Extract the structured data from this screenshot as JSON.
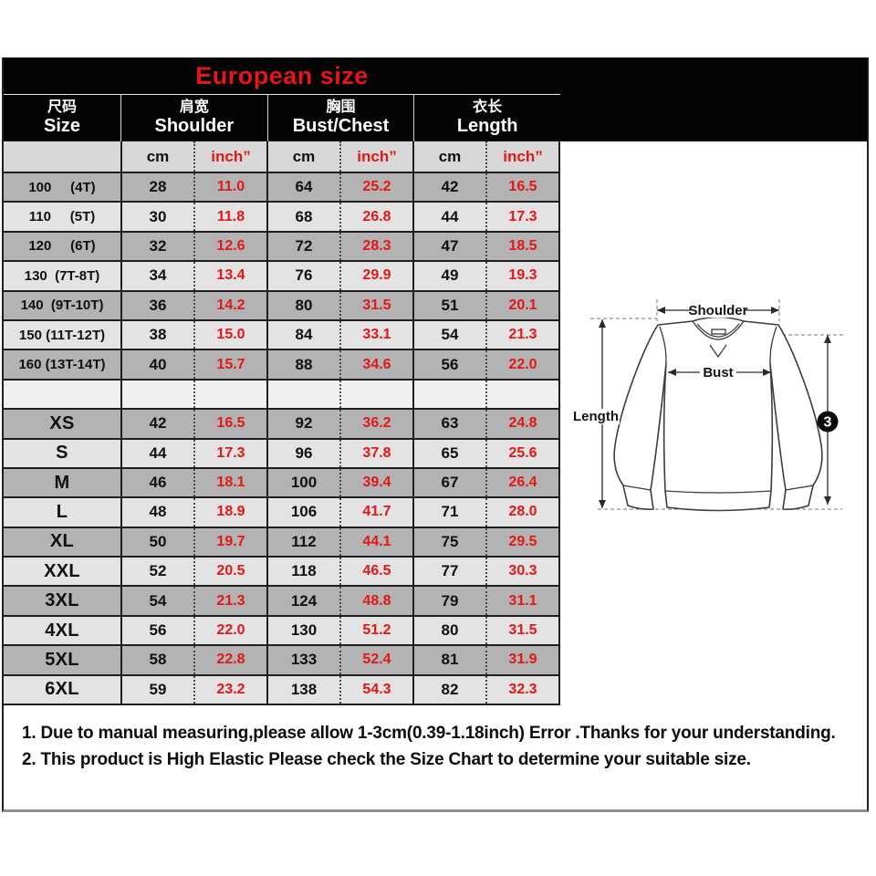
{
  "title": "European size",
  "colors": {
    "red": "#e41616",
    "band_black": "#040404",
    "border_dark": "#1f1f1f",
    "row_dark": "#b3b3b3",
    "row_light": "#e3e3e3",
    "row_blank": "#f0f0f0",
    "subheader_bg": "#d8d8d8"
  },
  "chart_data": {
    "type": "table",
    "title": "European size",
    "column_groups": [
      {
        "zh": "尺码",
        "en": "Size"
      },
      {
        "zh": "肩宽",
        "en": "Shoulder"
      },
      {
        "zh": "胸围",
        "en": "Bust/Chest"
      },
      {
        "zh": "衣长",
        "en": "Length"
      }
    ],
    "units": {
      "cm": "cm",
      "inch": "inch”"
    },
    "value_columns": [
      "Shoulder cm",
      "Shoulder inch",
      "Bust/Chest cm",
      "Bust/Chest inch",
      "Length cm",
      "Length inch"
    ],
    "rows": [
      {
        "size": "100     (4T)",
        "small": true,
        "shade": "dark",
        "values": [
          "28",
          "11.0",
          "64",
          "25.2",
          "42",
          "16.5"
        ]
      },
      {
        "size": "110     (5T)",
        "small": true,
        "shade": "light",
        "values": [
          "30",
          "11.8",
          "68",
          "26.8",
          "44",
          "17.3"
        ]
      },
      {
        "size": "120     (6T)",
        "small": true,
        "shade": "dark",
        "values": [
          "32",
          "12.6",
          "72",
          "28.3",
          "47",
          "18.5"
        ]
      },
      {
        "size": "130  (7T-8T)",
        "small": true,
        "shade": "light",
        "values": [
          "34",
          "13.4",
          "76",
          "29.9",
          "49",
          "19.3"
        ]
      },
      {
        "size": "140  (9T-10T)",
        "small": true,
        "shade": "dark",
        "values": [
          "36",
          "14.2",
          "80",
          "31.5",
          "51",
          "20.1"
        ]
      },
      {
        "size": "150 (11T-12T)",
        "small": true,
        "shade": "light",
        "values": [
          "38",
          "15.0",
          "84",
          "33.1",
          "54",
          "21.3"
        ]
      },
      {
        "size": "160 (13T-14T)",
        "small": true,
        "shade": "dark",
        "values": [
          "40",
          "15.7",
          "88",
          "34.6",
          "56",
          "22.0"
        ]
      },
      {
        "size": "",
        "small": true,
        "shade": "blank",
        "values": [
          "",
          "",
          "",
          "",
          "",
          ""
        ]
      },
      {
        "size": "XS",
        "small": false,
        "shade": "dark",
        "values": [
          "42",
          "16.5",
          "92",
          "36.2",
          "63",
          "24.8"
        ]
      },
      {
        "size": "S",
        "small": false,
        "shade": "light",
        "values": [
          "44",
          "17.3",
          "96",
          "37.8",
          "65",
          "25.6"
        ]
      },
      {
        "size": "M",
        "small": false,
        "shade": "dark",
        "values": [
          "46",
          "18.1",
          "100",
          "39.4",
          "67",
          "26.4"
        ]
      },
      {
        "size": "L",
        "small": false,
        "shade": "light",
        "values": [
          "48",
          "18.9",
          "106",
          "41.7",
          "71",
          "28.0"
        ]
      },
      {
        "size": "XL",
        "small": false,
        "shade": "dark",
        "values": [
          "50",
          "19.7",
          "112",
          "44.1",
          "75",
          "29.5"
        ]
      },
      {
        "size": "XXL",
        "small": false,
        "shade": "light",
        "values": [
          "52",
          "20.5",
          "118",
          "46.5",
          "77",
          "30.3"
        ]
      },
      {
        "size": "3XL",
        "small": false,
        "shade": "dark",
        "values": [
          "54",
          "21.3",
          "124",
          "48.8",
          "79",
          "31.1"
        ]
      },
      {
        "size": "4XL",
        "small": false,
        "shade": "light",
        "values": [
          "56",
          "22.0",
          "130",
          "51.2",
          "80",
          "31.5"
        ]
      },
      {
        "size": "5XL",
        "small": false,
        "shade": "dark",
        "values": [
          "58",
          "22.8",
          "133",
          "52.4",
          "81",
          "31.9"
        ]
      },
      {
        "size": "6XL",
        "small": false,
        "shade": "light",
        "values": [
          "59",
          "23.2",
          "138",
          "54.3",
          "82",
          "32.3"
        ]
      }
    ]
  },
  "diagram": {
    "shoulder_label": "Shoulder",
    "bust_label": "Bust",
    "length_label": "Length",
    "badge": "3"
  },
  "notes": [
    "1. Due to manual measuring,please allow 1-3cm(0.39-1.18inch) Error .Thanks for your understanding.",
    "2. This product is High Elastic Please check the Size Chart to determine your suitable size."
  ]
}
